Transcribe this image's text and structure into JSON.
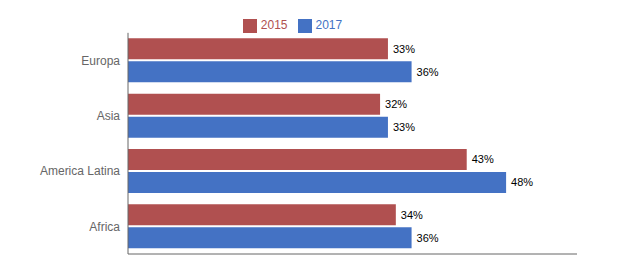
{
  "chart_data": {
    "type": "bar",
    "orientation": "horizontal",
    "categories": [
      "Africa",
      "America Latina",
      "Asia",
      "Europa"
    ],
    "series": [
      {
        "name": "2015",
        "color": "#B05050",
        "values": [
          34,
          43,
          32,
          33
        ],
        "value_labels": [
          "34%",
          "43%",
          "32%",
          "33%"
        ]
      },
      {
        "name": "2017",
        "color": "#4472C4",
        "values": [
          36,
          48,
          33,
          36
        ],
        "value_labels": [
          "36%",
          "48%",
          "33%",
          "36%"
        ]
      }
    ],
    "xlim": [
      0,
      57
    ],
    "data_labels": true,
    "tick_labels": "y",
    "grid": false,
    "legend": "top"
  }
}
